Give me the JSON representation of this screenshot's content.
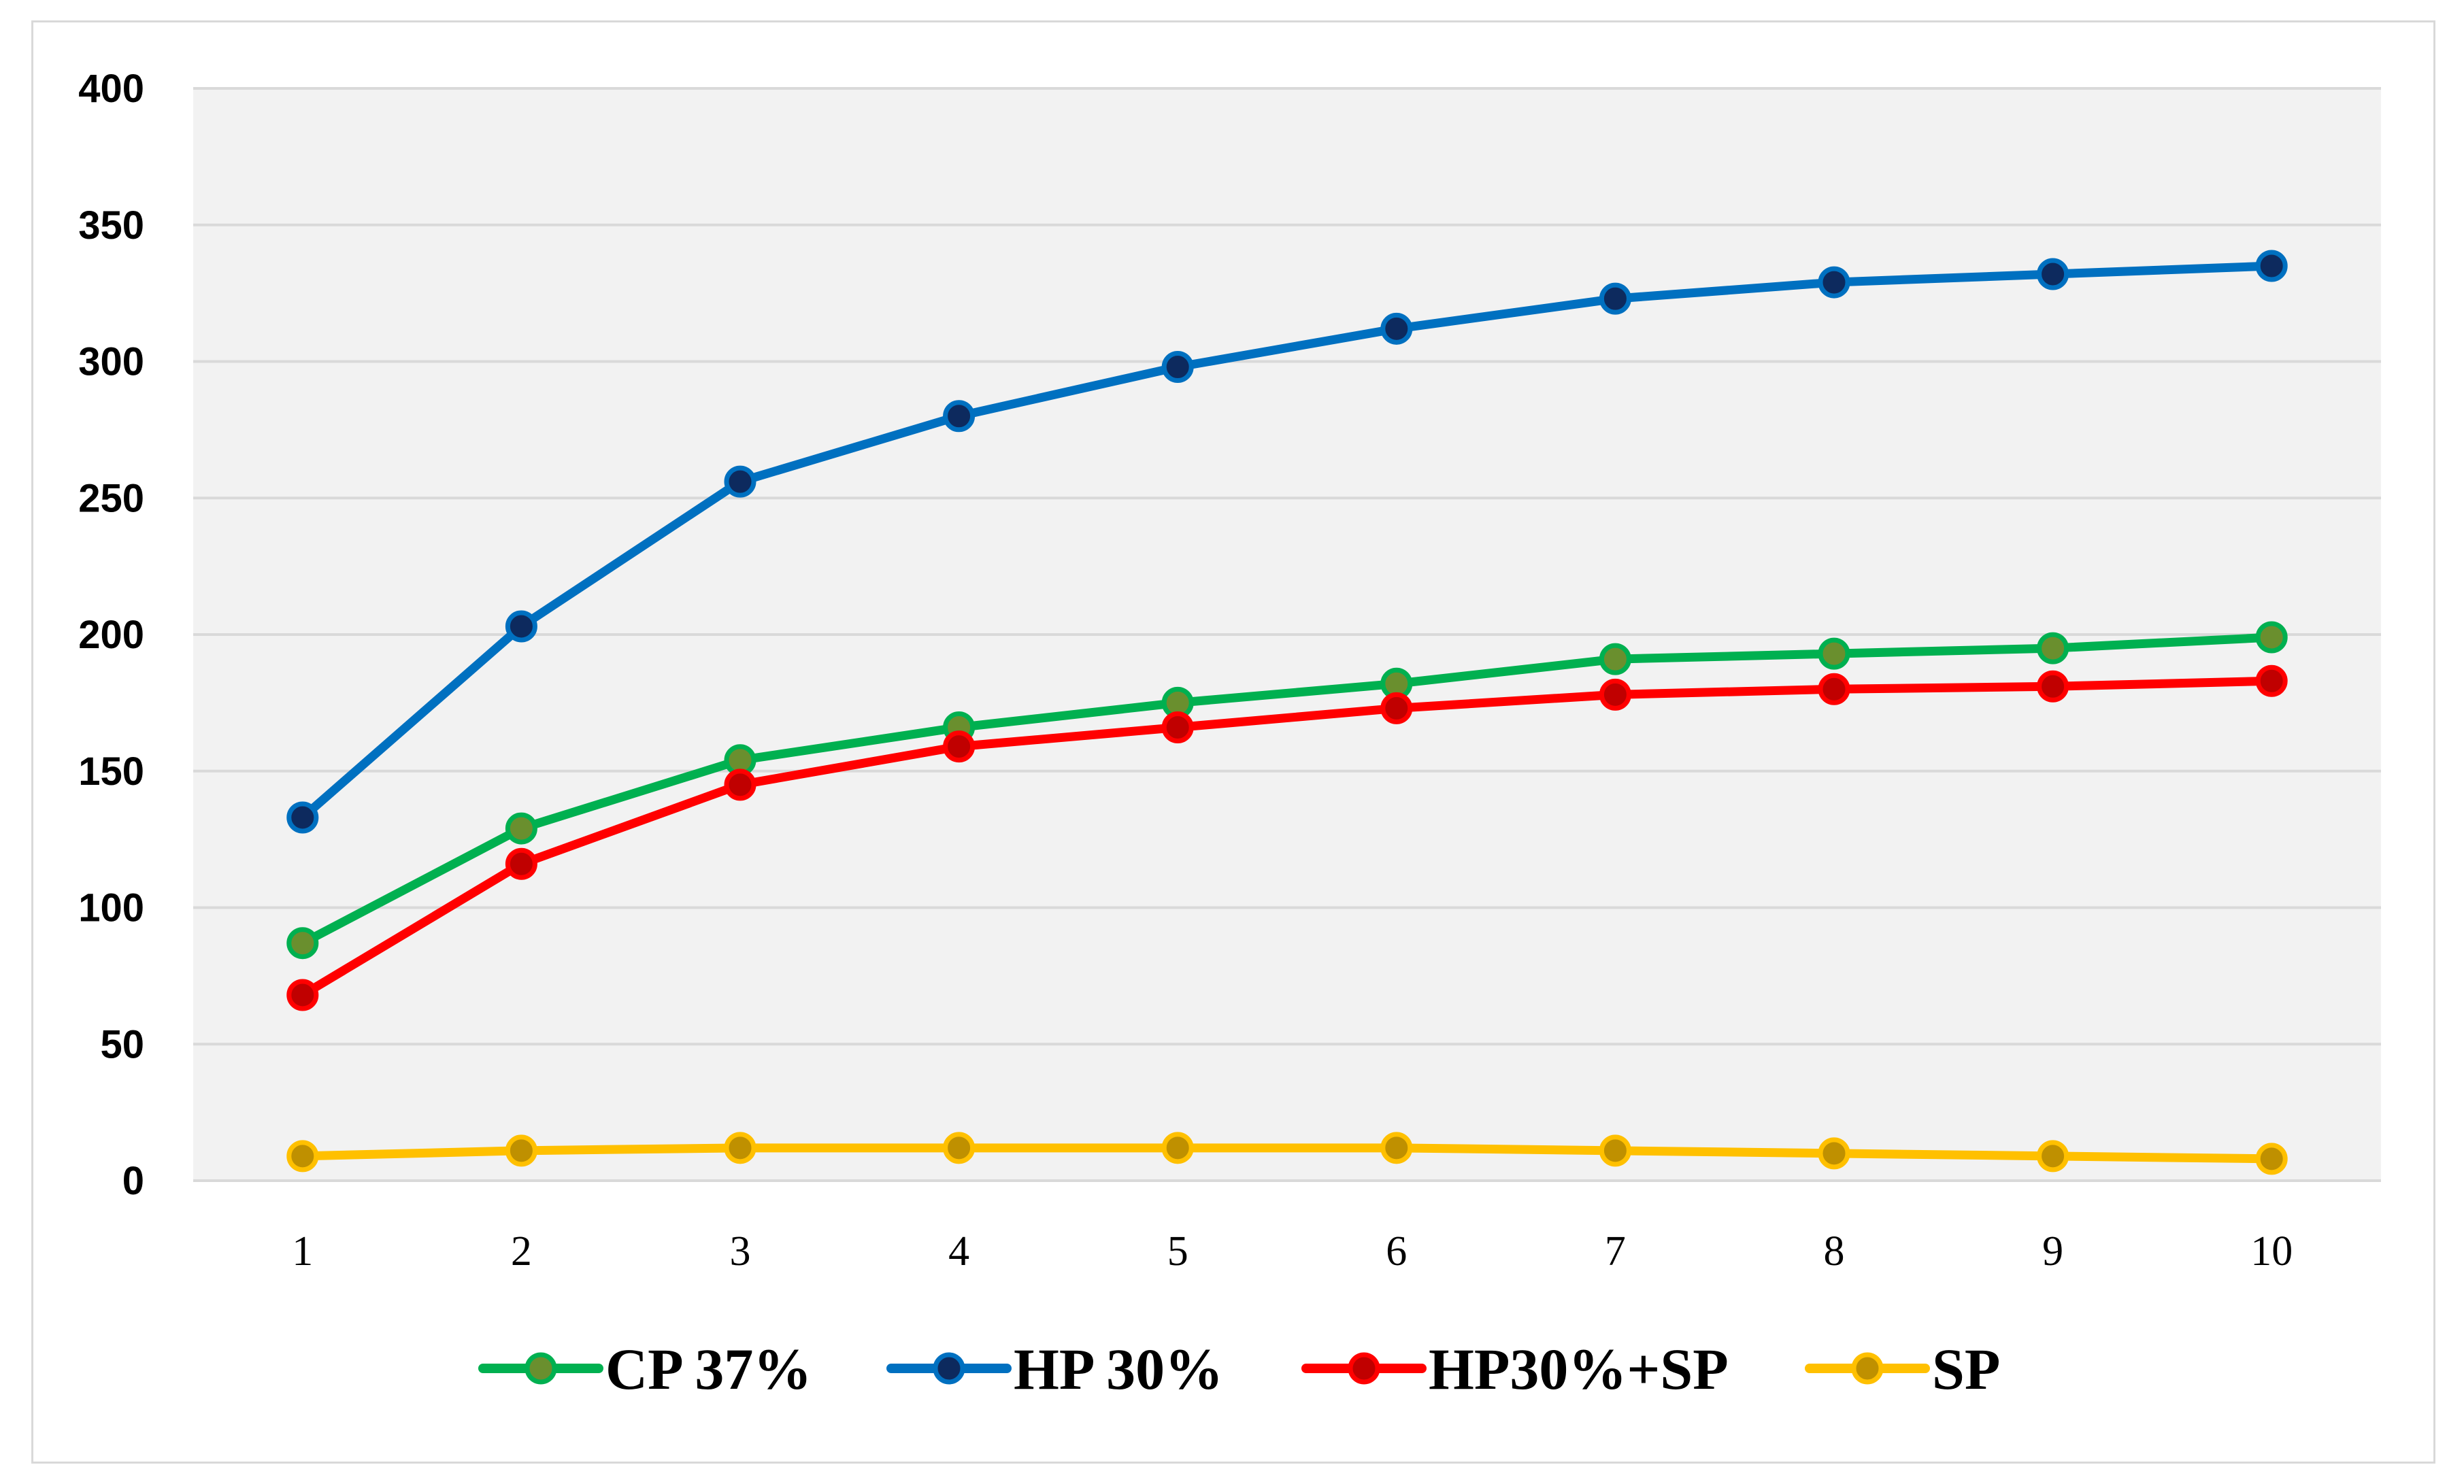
{
  "chart_data": {
    "type": "line",
    "title": "",
    "xlabel": "",
    "ylabel": "",
    "x": [
      1,
      2,
      3,
      4,
      5,
      6,
      7,
      8,
      9,
      10
    ],
    "ylim": [
      0,
      400
    ],
    "yticks": [
      0,
      50,
      100,
      150,
      200,
      250,
      300,
      350,
      400
    ],
    "grid": true,
    "legend_position": "bottom",
    "series": [
      {
        "name": "CP 37%",
        "color": "#00b050",
        "marker_color": "#6a8f2e",
        "values": [
          87,
          129,
          154,
          166,
          175,
          182,
          191,
          193,
          195,
          199
        ]
      },
      {
        "name": "HP 30%",
        "color": "#0070c0",
        "marker_color": "#0d2a5e",
        "values": [
          133,
          203,
          256,
          280,
          298,
          312,
          323,
          329,
          332,
          335
        ]
      },
      {
        "name": "HP30%+SP",
        "color": "#ff0000",
        "marker_color": "#c00000",
        "values": [
          68,
          116,
          145,
          159,
          166,
          173,
          178,
          180,
          181,
          183
        ]
      },
      {
        "name": "SP",
        "color": "#ffc000",
        "marker_color": "#bf9000",
        "values": [
          9,
          11,
          12,
          12,
          12,
          12,
          11,
          10,
          9,
          8
        ]
      }
    ]
  }
}
